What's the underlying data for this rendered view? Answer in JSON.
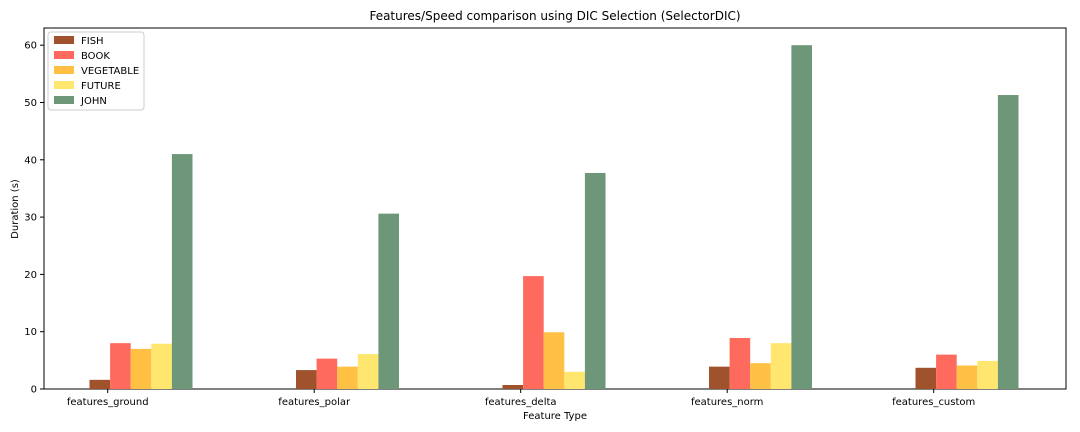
{
  "chart_data": {
    "type": "bar",
    "title": "Features/Speed comparison using DIC Selection (SelectorDIC)",
    "xlabel": "Feature Type",
    "ylabel": "Duration (s)",
    "ylim": [
      0,
      63
    ],
    "yticks": [
      0,
      10,
      20,
      30,
      40,
      50,
      60
    ],
    "grid": false,
    "legend_position": "top-left",
    "categories": [
      "features_ground",
      "features_polar",
      "features_delta",
      "features_norm",
      "features_custom"
    ],
    "series": [
      {
        "name": "FISH",
        "color": "#a0522d",
        "values": [
          1.6,
          3.3,
          0.7,
          3.9,
          3.7
        ]
      },
      {
        "name": "BOOK",
        "color": "#ff6a5e",
        "values": [
          8.0,
          5.3,
          19.7,
          8.9,
          6.0
        ]
      },
      {
        "name": "VEGETABLE",
        "color": "#ffc043",
        "values": [
          7.0,
          3.9,
          9.9,
          4.5,
          4.1
        ]
      },
      {
        "name": "FUTURE",
        "color": "#ffe66e",
        "values": [
          7.9,
          6.1,
          3.0,
          8.0,
          4.9
        ]
      },
      {
        "name": "JOHN",
        "color": "#6e9679",
        "values": [
          41.0,
          30.6,
          37.7,
          60.0,
          51.3
        ]
      }
    ]
  }
}
